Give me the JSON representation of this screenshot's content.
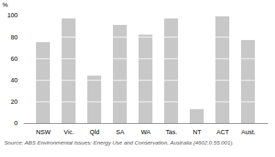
{
  "chart_data": {
    "type": "bar",
    "categories": [
      "NSW",
      "Vic.",
      "Qld",
      "SA",
      "WA",
      "Tas.",
      "NT",
      "ACT",
      "Aust."
    ],
    "values": [
      75,
      97,
      44,
      91,
      82,
      97,
      13,
      99,
      77
    ],
    "color": "#c8c8c8",
    "ylabel": "%",
    "ylim": [
      0,
      100
    ],
    "yticks": [
      0,
      20,
      40,
      60,
      80,
      100
    ],
    "grid": true,
    "caption": "Source: ABS Environmental Issues: Energy Use and Conservation, Australia (4602.0.55.001)."
  }
}
